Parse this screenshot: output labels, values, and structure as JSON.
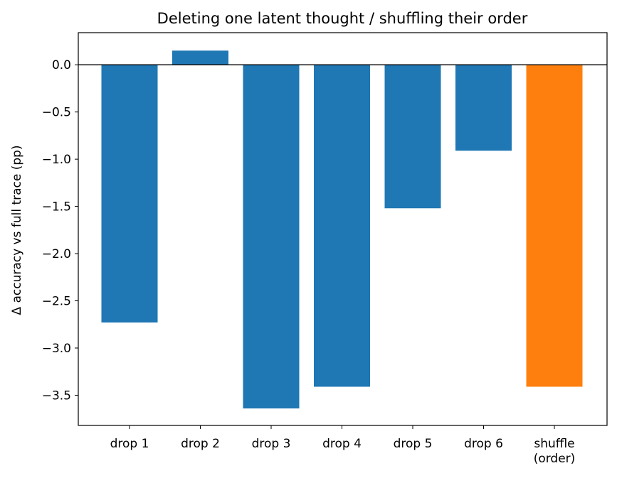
{
  "chart_data": {
    "type": "bar",
    "title": "Deleting one latent thought / shuffling their order",
    "xlabel": "",
    "ylabel": "Δ accuracy vs full trace (pp)",
    "categories": [
      "drop 1",
      "drop 2",
      "drop 3",
      "drop 4",
      "drop 5",
      "drop 6",
      "shuffle\n(order)"
    ],
    "values": [
      -2.73,
      0.15,
      -3.64,
      -3.41,
      -1.52,
      -0.91,
      -3.41
    ],
    "bar_colors": [
      "#1f77b4",
      "#1f77b4",
      "#1f77b4",
      "#1f77b4",
      "#1f77b4",
      "#1f77b4",
      "#ff7f0e"
    ],
    "ylim": [
      -3.82,
      0.34
    ],
    "yticks": [
      0.0,
      -0.5,
      -1.0,
      -1.5,
      -2.0,
      -2.5,
      -3.0,
      -3.5
    ],
    "ytick_labels": [
      "0.0",
      "−0.5",
      "−1.0",
      "−1.5",
      "−2.0",
      "−2.5",
      "−3.0",
      "−3.5"
    ],
    "zero_line": true,
    "grid": false,
    "legend": "none"
  }
}
